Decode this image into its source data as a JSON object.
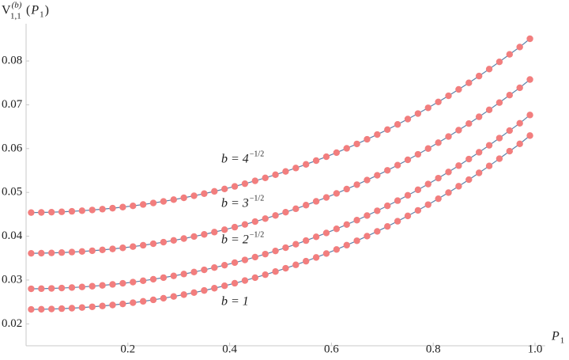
{
  "chart_data": {
    "type": "line",
    "ylabel": {
      "main": "V",
      "sup": "(b)",
      "sub": "1,1",
      "open": "(",
      "arg": "P",
      "arg_sub": "1",
      "close": ")"
    },
    "xlabel": {
      "main": "P",
      "sub": "1"
    },
    "xlim": [
      0,
      1.02
    ],
    "ylim": [
      0.015,
      0.0885
    ],
    "xticks": [
      0.2,
      0.4,
      0.6,
      0.8,
      {
        "value": 1,
        "label": "1.0"
      }
    ],
    "yticks": [
      0.02,
      0.03,
      0.04,
      0.05,
      0.06,
      0.07,
      0.08
    ],
    "x": [
      0.01,
      0.03,
      0.05,
      0.07,
      0.09,
      0.11,
      0.13,
      0.15,
      0.17,
      0.19,
      0.21,
      0.23,
      0.25,
      0.27,
      0.29,
      0.31,
      0.33,
      0.35,
      0.37,
      0.39,
      0.41,
      0.43,
      0.45,
      0.47,
      0.49,
      0.51,
      0.53,
      0.55,
      0.57,
      0.59,
      0.61,
      0.63,
      0.65,
      0.67,
      0.69,
      0.71,
      0.73,
      0.75,
      0.77,
      0.79,
      0.81,
      0.83,
      0.85,
      0.87,
      0.89,
      0.91,
      0.93,
      0.95,
      0.97,
      0.99
    ],
    "series": [
      {
        "name": "b = 4",
        "name_sup": "−1/2",
        "color": "#f27e7e",
        "line_color": "#5b80a8",
        "values": [
          0.0454,
          0.04543,
          0.04549,
          0.04557,
          0.04568,
          0.04582,
          0.04599,
          0.04618,
          0.0464,
          0.04665,
          0.04693,
          0.04724,
          0.04758,
          0.04795,
          0.04835,
          0.04877,
          0.04923,
          0.04972,
          0.05024,
          0.05079,
          0.05137,
          0.05199,
          0.05264,
          0.05332,
          0.05404,
          0.05479,
          0.05557,
          0.0564,
          0.05726,
          0.05815,
          0.05908,
          0.06006,
          0.06107,
          0.06212,
          0.06321,
          0.06434,
          0.06552,
          0.06674,
          0.068,
          0.06931,
          0.07066,
          0.07206,
          0.07351,
          0.07501,
          0.07656,
          0.07815,
          0.0798,
          0.08151,
          0.08318,
          0.08507
        ]
      },
      {
        "name": "b = 3",
        "name_sup": "−1/2",
        "color": "#f27e7e",
        "line_color": "#5b80a8",
        "values": [
          0.0361,
          0.03613,
          0.03619,
          0.03627,
          0.03638,
          0.03652,
          0.03669,
          0.03688,
          0.0371,
          0.03735,
          0.03763,
          0.03794,
          0.03828,
          0.03865,
          0.03905,
          0.03947,
          0.03993,
          0.04042,
          0.04094,
          0.04149,
          0.04207,
          0.04269,
          0.04334,
          0.04402,
          0.04474,
          0.04549,
          0.04627,
          0.0471,
          0.04796,
          0.04885,
          0.04978,
          0.05076,
          0.05177,
          0.05282,
          0.05391,
          0.05504,
          0.05622,
          0.05744,
          0.0587,
          0.06001,
          0.06136,
          0.06276,
          0.06421,
          0.06571,
          0.06726,
          0.06885,
          0.0705,
          0.07221,
          0.07388,
          0.07577
        ]
      },
      {
        "name": "b = 2",
        "name_sup": "−1/2",
        "color": "#f27e7e",
        "line_color": "#5b80a8",
        "values": [
          0.028,
          0.02803,
          0.02809,
          0.02817,
          0.02828,
          0.02842,
          0.02859,
          0.02878,
          0.029,
          0.02925,
          0.02953,
          0.02984,
          0.03018,
          0.03055,
          0.03095,
          0.03137,
          0.03183,
          0.03232,
          0.03284,
          0.03339,
          0.03397,
          0.03459,
          0.03524,
          0.03592,
          0.03664,
          0.03739,
          0.03817,
          0.039,
          0.03986,
          0.04075,
          0.04168,
          0.04266,
          0.04367,
          0.04472,
          0.04581,
          0.04694,
          0.04812,
          0.04934,
          0.0506,
          0.05191,
          0.05326,
          0.05466,
          0.05611,
          0.05761,
          0.05916,
          0.06075,
          0.0624,
          0.06411,
          0.06578,
          0.06767
        ]
      },
      {
        "name": "b = 1",
        "color": "#f27e7e",
        "line_color": "#5b80a8",
        "values": [
          0.0233,
          0.02333,
          0.02339,
          0.02347,
          0.02358,
          0.02372,
          0.02389,
          0.02408,
          0.0243,
          0.02455,
          0.02483,
          0.02514,
          0.02548,
          0.02585,
          0.02625,
          0.02667,
          0.02713,
          0.02762,
          0.02814,
          0.02869,
          0.02927,
          0.02989,
          0.03054,
          0.03122,
          0.03194,
          0.03269,
          0.03347,
          0.0343,
          0.03516,
          0.03605,
          0.03698,
          0.03796,
          0.03897,
          0.04002,
          0.04111,
          0.04224,
          0.04342,
          0.04464,
          0.0459,
          0.04721,
          0.04856,
          0.04996,
          0.05141,
          0.05291,
          0.05446,
          0.05605,
          0.0577,
          0.05941,
          0.06108,
          0.06297
        ]
      }
    ]
  }
}
